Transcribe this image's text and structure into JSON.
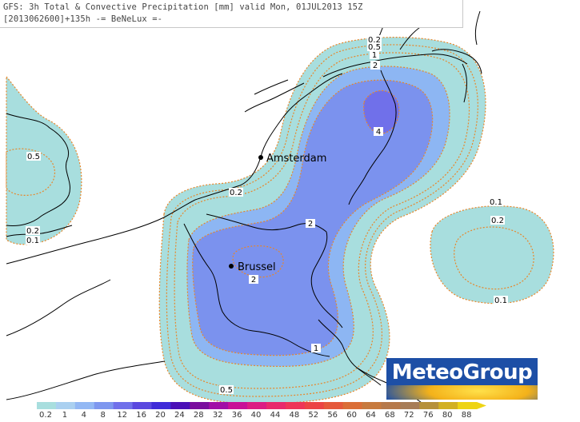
{
  "title": {
    "line1": "GFS: 3h Total & Convective Precipitation [mm] valid Mon, 01JUL2013 15Z",
    "line2": "[2013062600]+135h -= BeNeLux =-"
  },
  "cities": [
    {
      "name": "Amsterdam"
    },
    {
      "name": "Brussel"
    }
  ],
  "contour_labels": [
    "0.2",
    "0.5",
    "1",
    "2",
    "4",
    "0.5",
    "0.2",
    "0.1",
    "0.2",
    "2",
    "2",
    "1",
    "0.5",
    "0.1",
    "0.2",
    "0.1"
  ],
  "logo": {
    "text": "MeteoGroup"
  },
  "colorbar": {
    "ticks": [
      "0.2",
      "1",
      "4",
      "8",
      "12",
      "16",
      "20",
      "24",
      "28",
      "32",
      "36",
      "40",
      "44",
      "48",
      "52",
      "56",
      "60",
      "64",
      "68",
      "72",
      "76",
      "80",
      "88"
    ],
    "colors": [
      "#a8dede",
      "#aad0f0",
      "#93b8f4",
      "#7e97ef",
      "#7070ea",
      "#5a48df",
      "#3f2bd8",
      "#4a0fb7",
      "#7a0d9e",
      "#a10ea6",
      "#c81097",
      "#dc1c83",
      "#e8296c",
      "#ee3558",
      "#ec4444",
      "#e5593b",
      "#da6e37",
      "#c77a3e",
      "#b6794a",
      "#a77c56",
      "#b6913a",
      "#d2b022",
      "#eed414"
    ]
  },
  "colors": {
    "level_01": "#a8dede",
    "level_1": "#8db6f3",
    "level_2": "#7b92ee",
    "level_4": "#7070ea",
    "contour_line": "#e8862a",
    "border_line": "#000000",
    "logo_bg": "#1d4fa6"
  }
}
